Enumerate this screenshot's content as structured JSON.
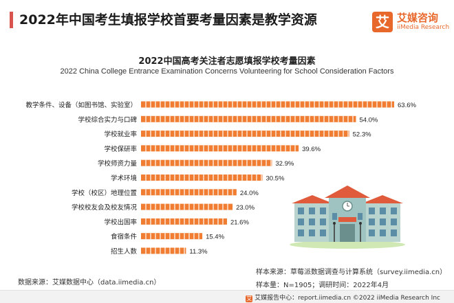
{
  "header": {
    "title": "2022年中国考生填报学校首要考量因素是教学资源",
    "logo_mark": "艾",
    "logo_cn": "艾媒咨询",
    "logo_en": "iiMedia Research"
  },
  "chart_data": {
    "type": "bar",
    "orientation": "horizontal",
    "title": "2022中国高考关注者志愿填报学校考量因素",
    "subtitle": "2022 China College Entrance Examination Concerns Volunteering for School Consideration Factors",
    "categories": [
      "教学条件、设备（如图书馆、实验室）",
      "学校综合实力与口碑",
      "学校就业率",
      "学校保研率",
      "学校师资力量",
      "学术环境",
      "学校（校区）地理位置",
      "学校校友会及校友情况",
      "学校出国率",
      "食宿条件",
      "招生人数"
    ],
    "values": [
      63.6,
      54.0,
      52.3,
      39.6,
      32.9,
      30.5,
      24.0,
      23.0,
      21.6,
      15.4,
      11.3
    ],
    "value_labels": [
      "63.6%",
      "54.0%",
      "52.3%",
      "39.6%",
      "32.9%",
      "30.5%",
      "24.0%",
      "23.0%",
      "21.6%",
      "15.4%",
      "11.3%"
    ],
    "xlim": [
      0,
      63.6
    ],
    "bar_color": "#f07d32",
    "grid": false
  },
  "sources": {
    "left": "数据来源：艾媒数据中心（data.iimedia.cn）",
    "sample_source": "样本来源：草莓派数据调查与计算系统（survey.iimedia.cn）",
    "sample_size": "样本量：N=1905；调研时间：2022年4月"
  },
  "footer": {
    "icon": "艾",
    "text": "艾媒报告中心：report.iimedia.cn  ©2022  iiMedia Research Inc"
  },
  "colors": {
    "accent": "#d9534f",
    "brand": "#e8682c",
    "bar": "#f07d32"
  }
}
